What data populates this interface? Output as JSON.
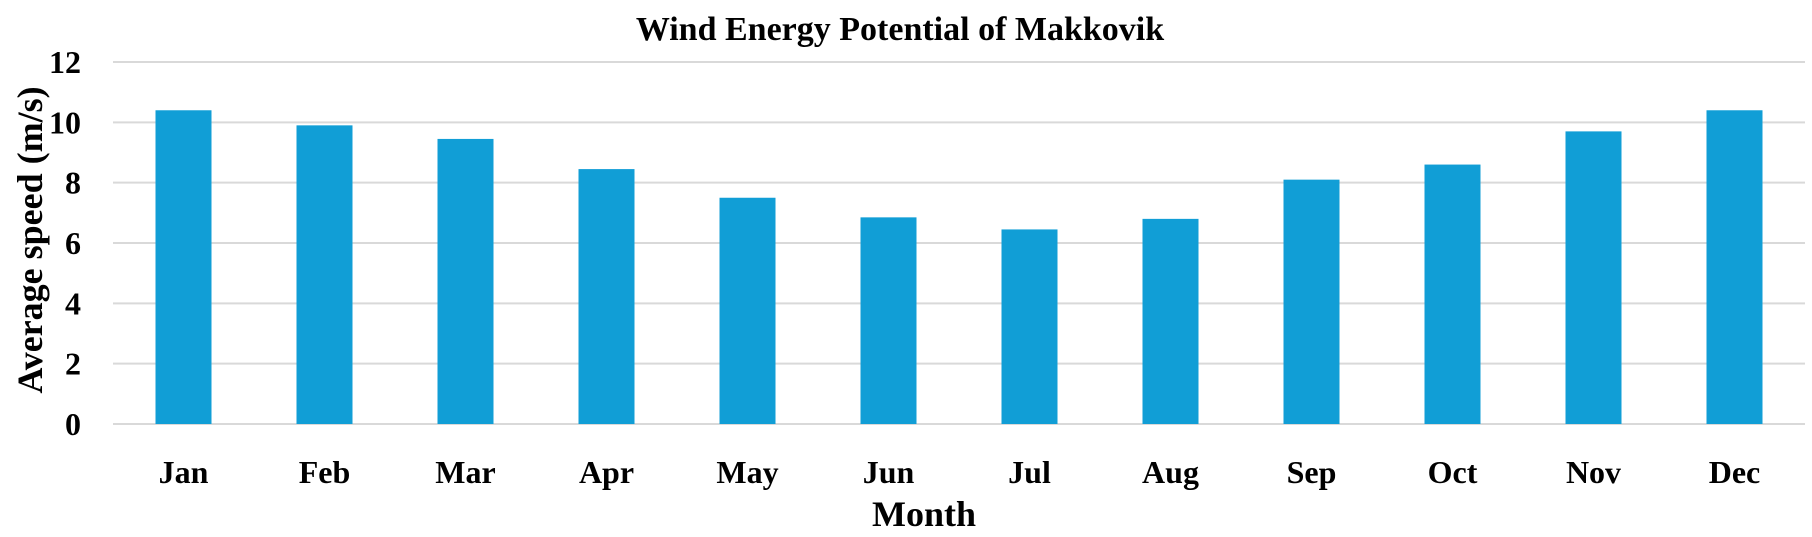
{
  "chart_data": {
    "type": "bar",
    "title": "Wind Energy Potential of Makkovik",
    "xlabel": "Month",
    "ylabel": "Average speed  (m/s)",
    "categories": [
      "Jan",
      "Feb",
      "Mar",
      "Apr",
      "May",
      "Jun",
      "Jul",
      "Aug",
      "Sep",
      "Oct",
      "Nov",
      "Dec"
    ],
    "values": [
      10.4,
      9.9,
      9.45,
      8.45,
      7.5,
      6.85,
      6.45,
      6.8,
      8.1,
      8.6,
      9.7,
      10.4
    ],
    "ylim": [
      0,
      12
    ],
    "yticks": [
      0,
      2,
      4,
      6,
      8,
      10,
      12
    ],
    "grid": true,
    "legend": "none",
    "bar_color": "#119ed6"
  }
}
